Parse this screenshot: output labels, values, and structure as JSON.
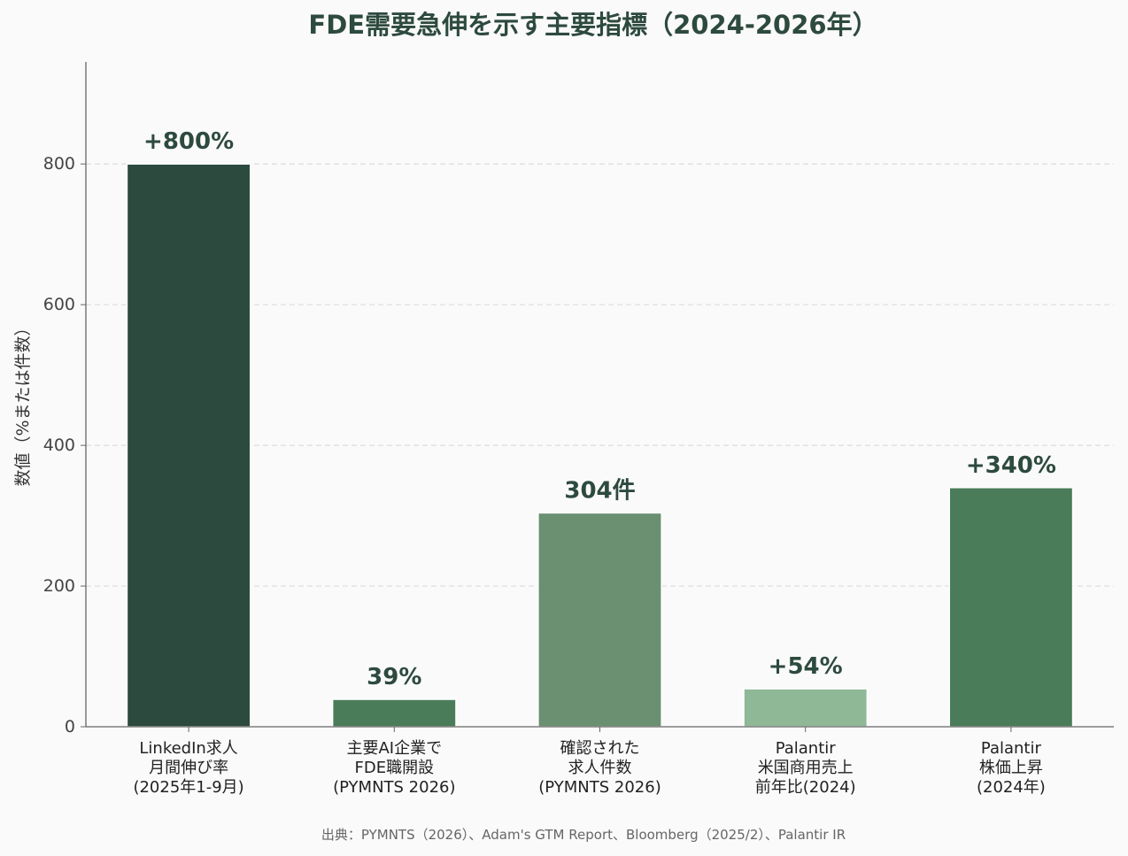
{
  "chart_data": {
    "type": "bar",
    "title": "FDE需要急伸を示す主要指標（2024-2026年）",
    "ylabel": "数値（%または件数）",
    "xlabel": "",
    "ylim": [
      0,
      945
    ],
    "yticks": [
      0,
      200,
      400,
      600,
      800
    ],
    "grid": "horizontal-dashed",
    "categories": [
      [
        "LinkedIn求人",
        "月間伸び率",
        "(2025年1-9月)"
      ],
      [
        "主要AI企業で",
        "FDE職開設",
        "(PYMNTS 2026)"
      ],
      [
        "確認された",
        "求人件数",
        "(PYMNTS 2026)"
      ],
      [
        "Palantir",
        "米国商用売上",
        "前年比(2024)"
      ],
      [
        "Palantir",
        "株価上昇",
        "(2024年)"
      ]
    ],
    "values": [
      800,
      39,
      304,
      54,
      340
    ],
    "data_labels": [
      "+800%",
      "39%",
      "304件",
      "+54%",
      "+340%"
    ],
    "colors": [
      "#2d4a3e",
      "#4a7c59",
      "#6b8f71",
      "#8fb896",
      "#4a7c59"
    ],
    "source": "出典：PYMNTS（2026）、Adam's GTM Report、Bloomberg（2025/2）、Palantir IR"
  }
}
